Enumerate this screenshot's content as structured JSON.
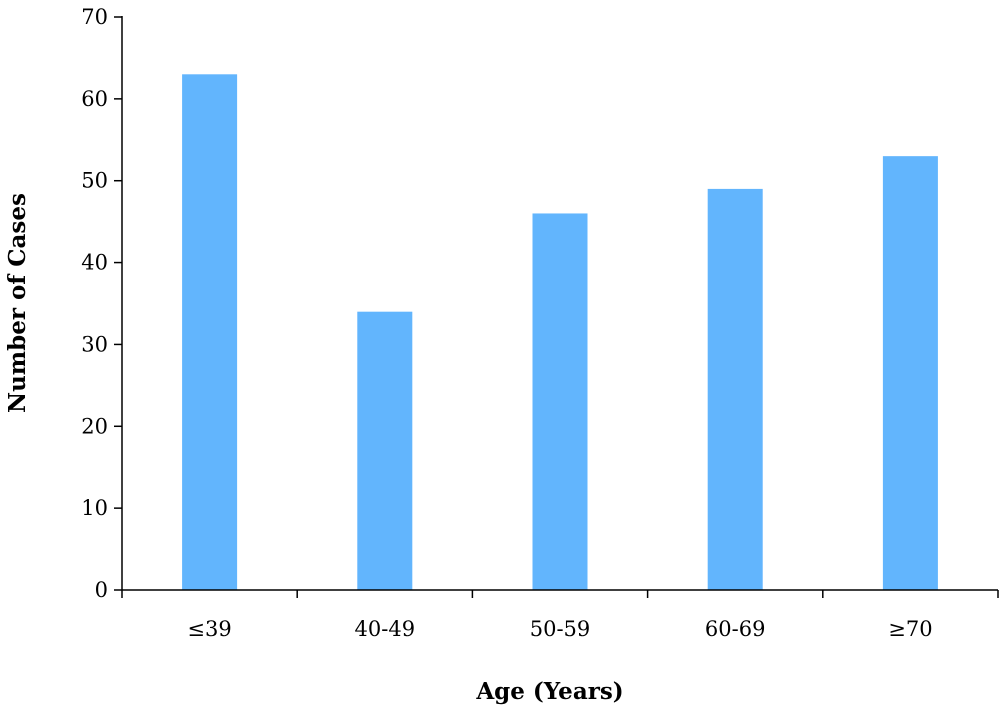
{
  "chart_data": {
    "type": "bar",
    "categories": [
      "≤39",
      "40-49",
      "50-59",
      "60-69",
      "≥70"
    ],
    "values": [
      63,
      34,
      46,
      49,
      53
    ],
    "title": "",
    "xlabel": "Age (Years)",
    "ylabel": "Number of Cases",
    "ylim": [
      0,
      70
    ],
    "yticks": [
      0,
      10,
      20,
      30,
      40,
      50,
      60,
      70
    ],
    "grid": false,
    "legend": "none",
    "bar_color": "#62b5fd",
    "axis_color": "#000000"
  }
}
